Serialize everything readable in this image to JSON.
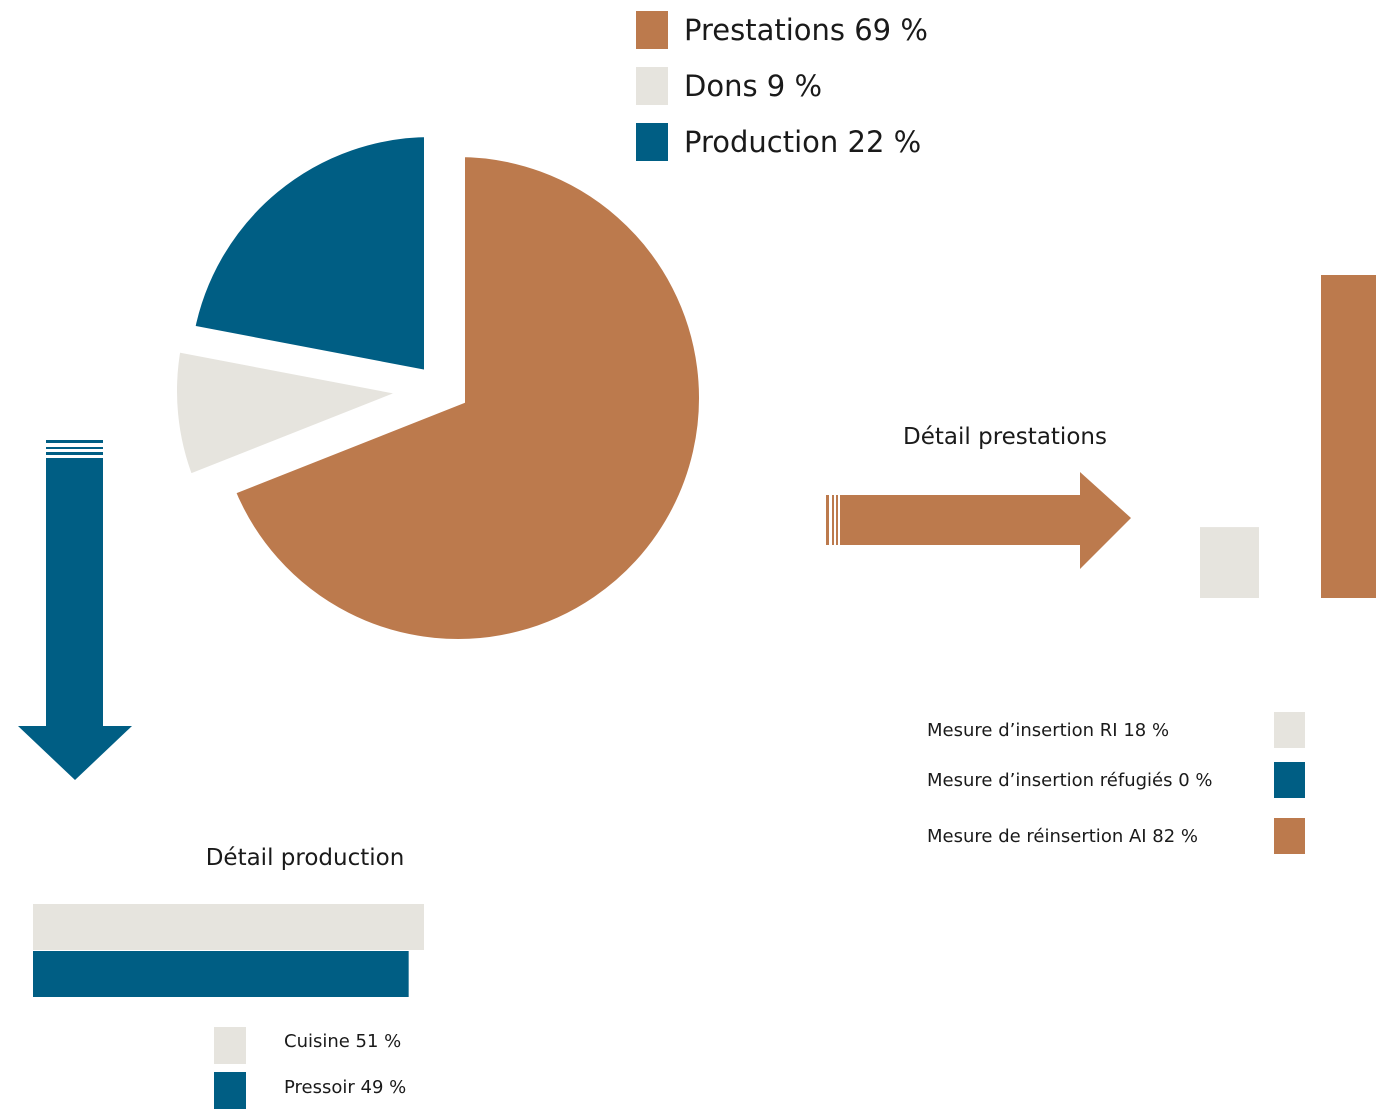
{
  "colors": {
    "prestations": "#BC7A4D",
    "dons": "#E6E4DE",
    "production": "#005E84",
    "text": "#1A1A1A",
    "background": "#FFFFFF"
  },
  "chart_data": [
    {
      "type": "pie",
      "title": "",
      "exploded": true,
      "legend_position": "top-right",
      "slices": [
        {
          "label": "Prestations",
          "value": 69,
          "legend": "Prestations 69 %",
          "color": "#BC7A4D"
        },
        {
          "label": "Dons",
          "value": 9,
          "legend": "Dons 9 %",
          "color": "#E6E4DE"
        },
        {
          "label": "Production",
          "value": 22,
          "legend": "Production 22 %",
          "color": "#005E84"
        }
      ]
    },
    {
      "type": "bar",
      "orientation": "vertical",
      "title": "Détail prestations",
      "arrow_direction": "right",
      "legend_position": "bottom",
      "ylim": [
        0,
        82
      ],
      "series": [
        {
          "label": "Mesure d’insertion RI",
          "value": 18,
          "legend": "Mesure d’insertion RI 18 %",
          "color": "#E6E4DE"
        },
        {
          "label": "Mesure d’insertion réfugiés",
          "value": 0,
          "legend": "Mesure d’insertion réfugiés 0 %",
          "color": "#005E84"
        },
        {
          "label": "Mesure de réinsertion AI",
          "value": 82,
          "legend": "Mesure de réinsertion AI 82 %",
          "color": "#BC7A4D"
        }
      ]
    },
    {
      "type": "bar",
      "orientation": "horizontal",
      "title": "Détail production",
      "arrow_direction": "down",
      "legend_position": "bottom-right",
      "xlim": [
        0,
        51
      ],
      "series": [
        {
          "label": "Cuisine",
          "value": 51,
          "legend": "Cuisine 51 %",
          "color": "#E6E4DE"
        },
        {
          "label": "Pressoir",
          "value": 49,
          "legend": "Pressoir 49 %",
          "color": "#005E84"
        }
      ]
    }
  ]
}
